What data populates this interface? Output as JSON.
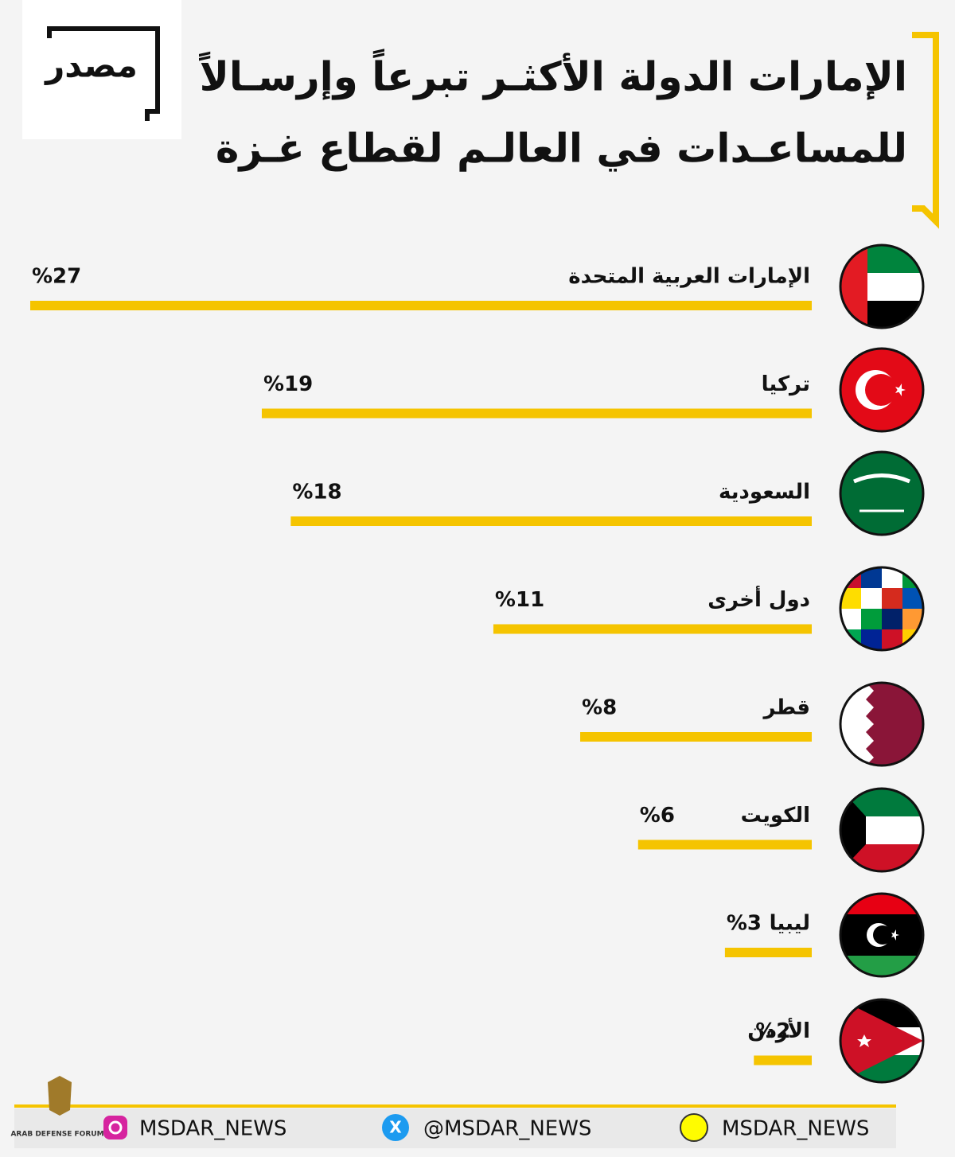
{
  "logo": "مصدر",
  "watermark": "ARAB DEFENSE FORUM",
  "footer": {
    "instagram": "MSDAR_NEWS",
    "x": "@MSDAR_NEWS",
    "snapchat": "MSDAR_NEWS"
  },
  "chart_data": {
    "type": "bar",
    "orientation": "horizontal",
    "title": [
      "الإمارات الدولة الأكثـر تبرعاً وإرسـالاً",
      "للمساعـدات في العالـم لقطاع غـزة"
    ],
    "categories": [
      "الإمارات العربية المتحدة",
      "تركيا",
      "السعودية",
      "دول أخرى",
      "قطر",
      "الكويت",
      "ليبيا",
      "الأردن"
    ],
    "values": [
      27,
      19,
      18,
      11,
      8,
      6,
      3,
      2
    ],
    "value_labels": [
      "%27",
      "%19",
      "%18",
      "%11",
      "%8",
      "%6",
      "%3",
      "%2"
    ],
    "color": "#f5c400"
  }
}
